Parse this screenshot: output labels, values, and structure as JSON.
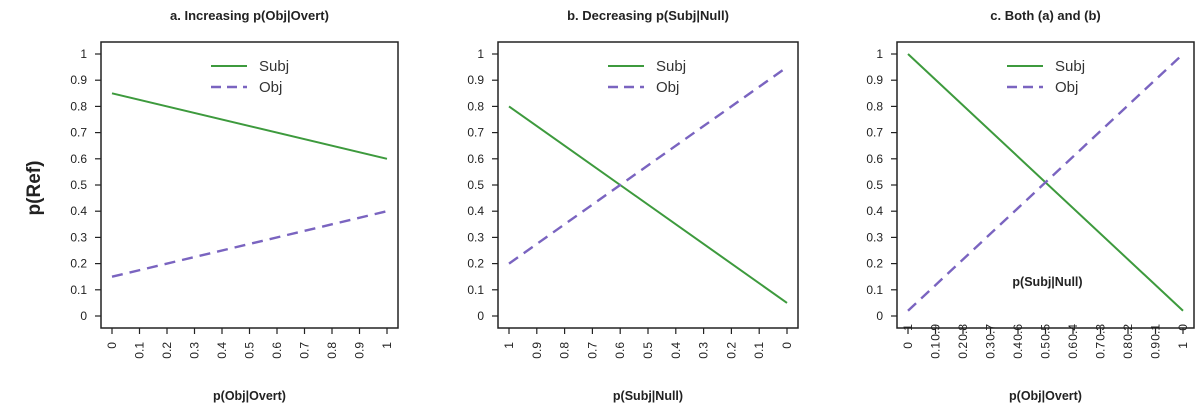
{
  "ylabel": "p(Ref)",
  "colors": {
    "subj": "#3d9a3d",
    "obj": "#7a64c0"
  },
  "chart_data": [
    {
      "type": "line",
      "title": "a. Increasing p(Obj|Overt)",
      "xlabel": "p(Obj|Overt)",
      "xticks": [
        "0",
        "0.1",
        "0.2",
        "0.3",
        "0.4",
        "0.5",
        "0.6",
        "0.7",
        "0.8",
        "0.9",
        "1"
      ],
      "yticks": [
        "0",
        "0.1",
        "0.2",
        "0.3",
        "0.4",
        "0.5",
        "0.6",
        "0.7",
        "0.8",
        "0.9",
        "1"
      ],
      "xlim": [
        0,
        1
      ],
      "ylim": [
        0,
        1
      ],
      "legend": "top-center",
      "series": [
        {
          "name": "Subj",
          "style": "solid",
          "x": [
            0,
            1
          ],
          "y": [
            0.85,
            0.6
          ]
        },
        {
          "name": "Obj",
          "style": "dashed",
          "x": [
            0,
            1
          ],
          "y": [
            0.15,
            0.4
          ]
        }
      ]
    },
    {
      "type": "line",
      "title": "b. Decreasing p(Subj|Null)",
      "xlabel": "p(Subj|Null)",
      "xticks": [
        "1",
        "0.9",
        "0.8",
        "0.7",
        "0.6",
        "0.5",
        "0.4",
        "0.3",
        "0.2",
        "0.1",
        "0"
      ],
      "yticks": [
        "0",
        "0.1",
        "0.2",
        "0.3",
        "0.4",
        "0.5",
        "0.6",
        "0.7",
        "0.8",
        "0.9",
        "1"
      ],
      "xlim": [
        1,
        0
      ],
      "ylim": [
        0,
        1
      ],
      "legend": "top-center",
      "series": [
        {
          "name": "Subj",
          "style": "solid",
          "x": [
            1,
            0
          ],
          "y": [
            0.8,
            0.05
          ]
        },
        {
          "name": "Obj",
          "style": "dashed",
          "x": [
            1,
            0
          ],
          "y": [
            0.2,
            0.95
          ]
        }
      ]
    },
    {
      "type": "line",
      "title": "c. Both (a) and (b)",
      "xlabel": "p(Obj|Overt)",
      "xticks": [
        "0",
        "0.1",
        "0.2",
        "0.3",
        "0.4",
        "0.5",
        "0.6",
        "0.7",
        "0.8",
        "0.9",
        "1"
      ],
      "secondary_xlabel": "p(Subj|Null)",
      "secondary_xticks": [
        "1",
        "0.9",
        "0.8",
        "0.7",
        "0.6",
        "0.5",
        "0.4",
        "0.3",
        "0.2",
        "0.1",
        "0"
      ],
      "yticks": [
        "0",
        "0.1",
        "0.2",
        "0.3",
        "0.4",
        "0.5",
        "0.6",
        "0.7",
        "0.8",
        "0.9",
        "1"
      ],
      "xlim": [
        0,
        1
      ],
      "ylim": [
        0,
        1
      ],
      "legend": "top-center",
      "series": [
        {
          "name": "Subj",
          "style": "solid",
          "x": [
            0,
            1
          ],
          "y": [
            1.0,
            0.02
          ]
        },
        {
          "name": "Obj",
          "style": "dashed",
          "x": [
            0,
            1
          ],
          "y": [
            0.02,
            1.0
          ]
        }
      ]
    }
  ]
}
